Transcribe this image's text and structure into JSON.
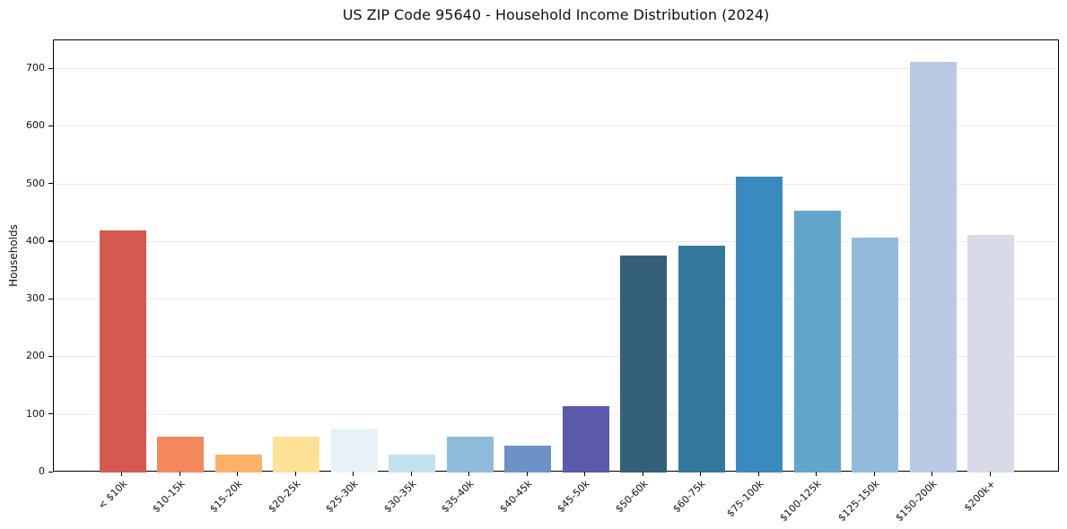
{
  "chart_data": {
    "type": "bar",
    "title": "US ZIP Code 95640 - Household Income Distribution (2024)",
    "xlabel": "",
    "ylabel": "Households",
    "categories": [
      "< $10k",
      "$10-15k",
      "$15-20k",
      "$20-25k",
      "$25-30k",
      "$30-35k",
      "$35-40k",
      "$40-45k",
      "$45-50k",
      "$50-60k",
      "$60-75k",
      "$75-100k",
      "$100-125k",
      "$125-150k",
      "$150-200k",
      "$200k+"
    ],
    "values": [
      420,
      62,
      31,
      62,
      77,
      31,
      62,
      47,
      115,
      376,
      393,
      513,
      455,
      408,
      712,
      413
    ],
    "bar_colors": [
      "#d6594f",
      "#f4885f",
      "#fab169",
      "#fce294",
      "#e7f2f7",
      "#c2e1ed",
      "#8fbcdb",
      "#6d92c5",
      "#5b59a9",
      "#35607a",
      "#35789d",
      "#3a8ac0",
      "#62a7ca",
      "#94badb",
      "#bac9e3",
      "#d9dae8"
    ],
    "yticks": [
      0,
      100,
      200,
      300,
      400,
      500,
      600,
      700
    ],
    "ylim": [
      0,
      750
    ],
    "grid": "horizontal",
    "gridline_color": "#eaeaea",
    "legend": "none",
    "background_color": "#ffffff"
  }
}
